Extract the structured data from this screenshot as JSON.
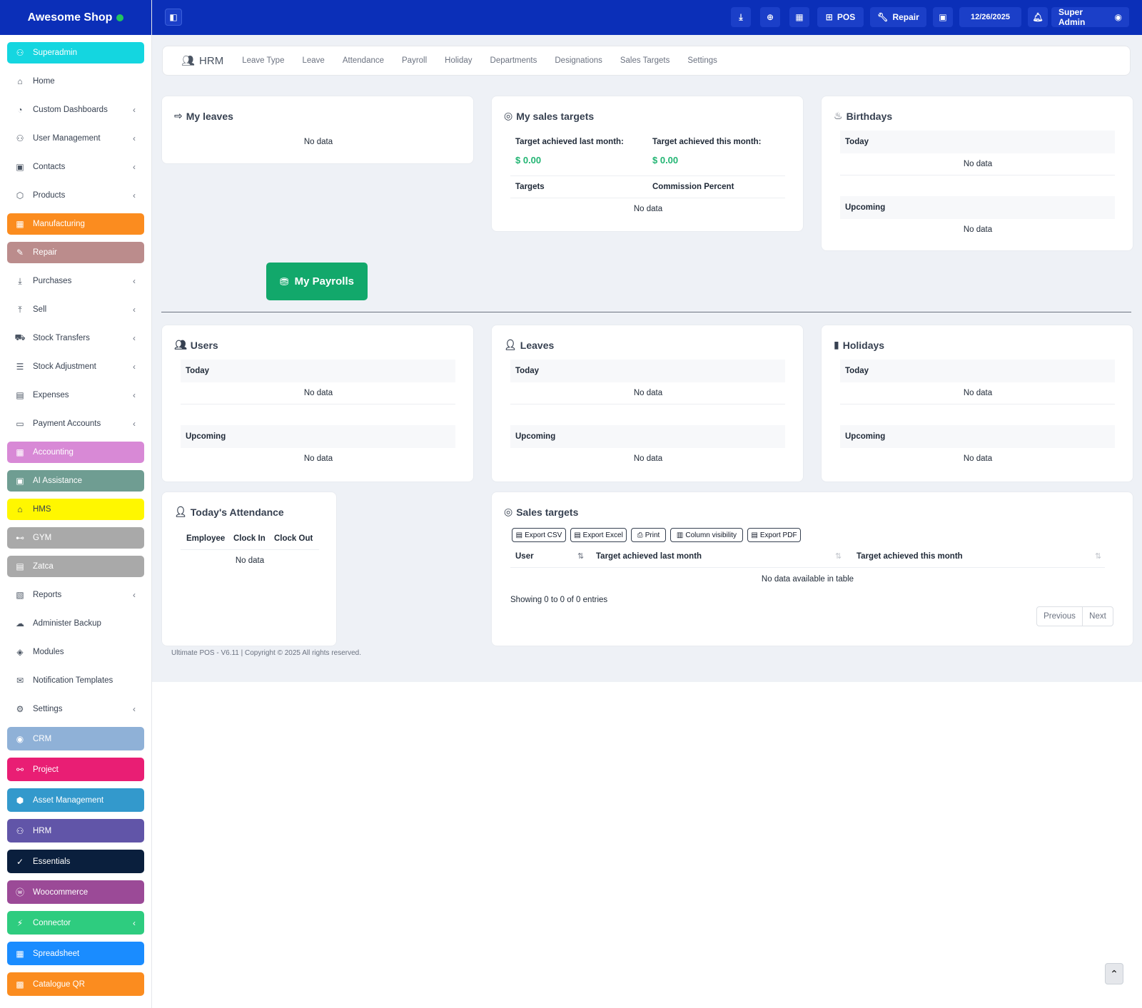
{
  "brand": {
    "name": "Awesome Shop"
  },
  "sidebar": {
    "items": [
      {
        "label": "Superadmin",
        "icon": "user-shield-icon",
        "color": "#14d6e0",
        "chev": false
      },
      {
        "label": "Home",
        "icon": "home-icon",
        "color": "",
        "chev": false
      },
      {
        "label": "Custom Dashboards",
        "icon": "dashboard-icon",
        "color": "",
        "chev": true
      },
      {
        "label": "User Management",
        "icon": "users-icon",
        "color": "",
        "chev": true
      },
      {
        "label": "Contacts",
        "icon": "address-book-icon",
        "color": "",
        "chev": true
      },
      {
        "label": "Products",
        "icon": "box-icon",
        "color": "",
        "chev": true
      },
      {
        "label": "Manufacturing",
        "icon": "factory-icon",
        "color": "#fb8c1f",
        "chev": false
      },
      {
        "label": "Repair",
        "icon": "wrench-icon",
        "color": "#bb8c8c",
        "chev": false
      },
      {
        "label": "Purchases",
        "icon": "download-icon",
        "color": "",
        "chev": true
      },
      {
        "label": "Sell",
        "icon": "upload-icon",
        "color": "",
        "chev": true
      },
      {
        "label": "Stock Transfers",
        "icon": "truck-icon",
        "color": "",
        "chev": true
      },
      {
        "label": "Stock Adjustment",
        "icon": "database-icon",
        "color": "",
        "chev": true
      },
      {
        "label": "Expenses",
        "icon": "receipt-icon",
        "color": "",
        "chev": true
      },
      {
        "label": "Payment Accounts",
        "icon": "credit-card-icon",
        "color": "",
        "chev": true
      },
      {
        "label": "Accounting",
        "icon": "calculator-icon",
        "color": "#d889d6",
        "chev": false
      },
      {
        "label": "AI Assistance",
        "icon": "robot-icon",
        "color": "#6f9d92",
        "chev": false
      },
      {
        "label": "HMS",
        "icon": "hotel-icon",
        "color": "#fff700",
        "chev": false
      },
      {
        "label": "GYM",
        "icon": "dumbbell-icon",
        "color": "#a9a9a9",
        "chev": false
      },
      {
        "label": "Zatca",
        "icon": "invoice-icon",
        "color": "#a9a9a9",
        "chev": false
      },
      {
        "label": "Reports",
        "icon": "report-icon",
        "color": "",
        "chev": true
      },
      {
        "label": "Administer Backup",
        "icon": "cloud-icon",
        "color": "",
        "chev": false
      },
      {
        "label": "Modules",
        "icon": "layers-icon",
        "color": "",
        "chev": false
      },
      {
        "label": "Notification Templates",
        "icon": "envelope-icon",
        "color": "",
        "chev": false
      },
      {
        "label": "Settings",
        "icon": "gear-icon",
        "color": "",
        "chev": true
      },
      {
        "label": "CRM",
        "icon": "broadcast-icon",
        "color": "#8fb1d7",
        "chev": false
      },
      {
        "label": "Project",
        "icon": "sitemap-icon",
        "color": "#e91e74",
        "chev": false
      },
      {
        "label": "Asset Management",
        "icon": "cubes-icon",
        "color": "#3399cc",
        "chev": false
      },
      {
        "label": "HRM",
        "icon": "team-icon",
        "color": "#6155a8",
        "chev": false
      },
      {
        "label": "Essentials",
        "icon": "check-circle-icon",
        "color": "#0a1f3d",
        "chev": false
      },
      {
        "label": "Woocommerce",
        "icon": "wordpress-icon",
        "color": "#9b4a97",
        "chev": false
      },
      {
        "label": "Connector",
        "icon": "plug-icon",
        "color": "#2ecc7f",
        "chev": true
      },
      {
        "label": "Spreadsheet",
        "icon": "spreadsheet-icon",
        "color": "#1a8cff",
        "chev": false
      },
      {
        "label": "Catalogue QR",
        "icon": "qrcode-icon",
        "color": "#fb8c1f",
        "chev": false
      }
    ]
  },
  "topbar": {
    "pos_label": "POS",
    "repair_label": "Repair",
    "date": "12/26/2025",
    "user": "Super Admin"
  },
  "tabs": {
    "hrm": "HRM",
    "items": [
      "Leave Type",
      "Leave",
      "Attendance",
      "Payroll",
      "Holiday",
      "Departments",
      "Designations",
      "Sales Targets",
      "Settings"
    ]
  },
  "my_leaves": {
    "title": "My leaves",
    "empty": "No data"
  },
  "my_sales": {
    "title": "My sales targets",
    "last_label": "Target achieved last month:",
    "last_value": "$ 0.00",
    "this_label": "Target achieved this month:",
    "this_value": "$ 0.00",
    "col_targets": "Targets",
    "col_commission": "Commission Percent",
    "empty": "No data"
  },
  "birthdays": {
    "title": "Birthdays",
    "today": "Today",
    "upcoming": "Upcoming",
    "empty": "No data"
  },
  "payroll_button": "My Payrolls",
  "users": {
    "title": "Users",
    "today": "Today",
    "upcoming": "Upcoming",
    "empty": "No data"
  },
  "leaves": {
    "title": "Leaves",
    "today": "Today",
    "upcoming": "Upcoming",
    "empty": "No data"
  },
  "holidays": {
    "title": "Holidays",
    "today": "Today",
    "upcoming": "Upcoming",
    "empty": "No data"
  },
  "attendance": {
    "title": "Today's Attendance",
    "cols": [
      "Employee",
      "Clock In",
      "Clock Out"
    ],
    "empty": "No data"
  },
  "sales_targets": {
    "title": "Sales targets",
    "buttons": [
      "Export CSV",
      "Export Excel",
      "Print",
      "Column visibility",
      "Export PDF"
    ],
    "cols": [
      "User",
      "Target achieved last month",
      "Target achieved this month"
    ],
    "empty": "No data available in table",
    "info": "Showing 0 to 0 of 0 entries",
    "prev": "Previous",
    "next": "Next"
  },
  "footer": "Ultimate POS - V6.11 | Copyright © 2025 All rights reserved."
}
